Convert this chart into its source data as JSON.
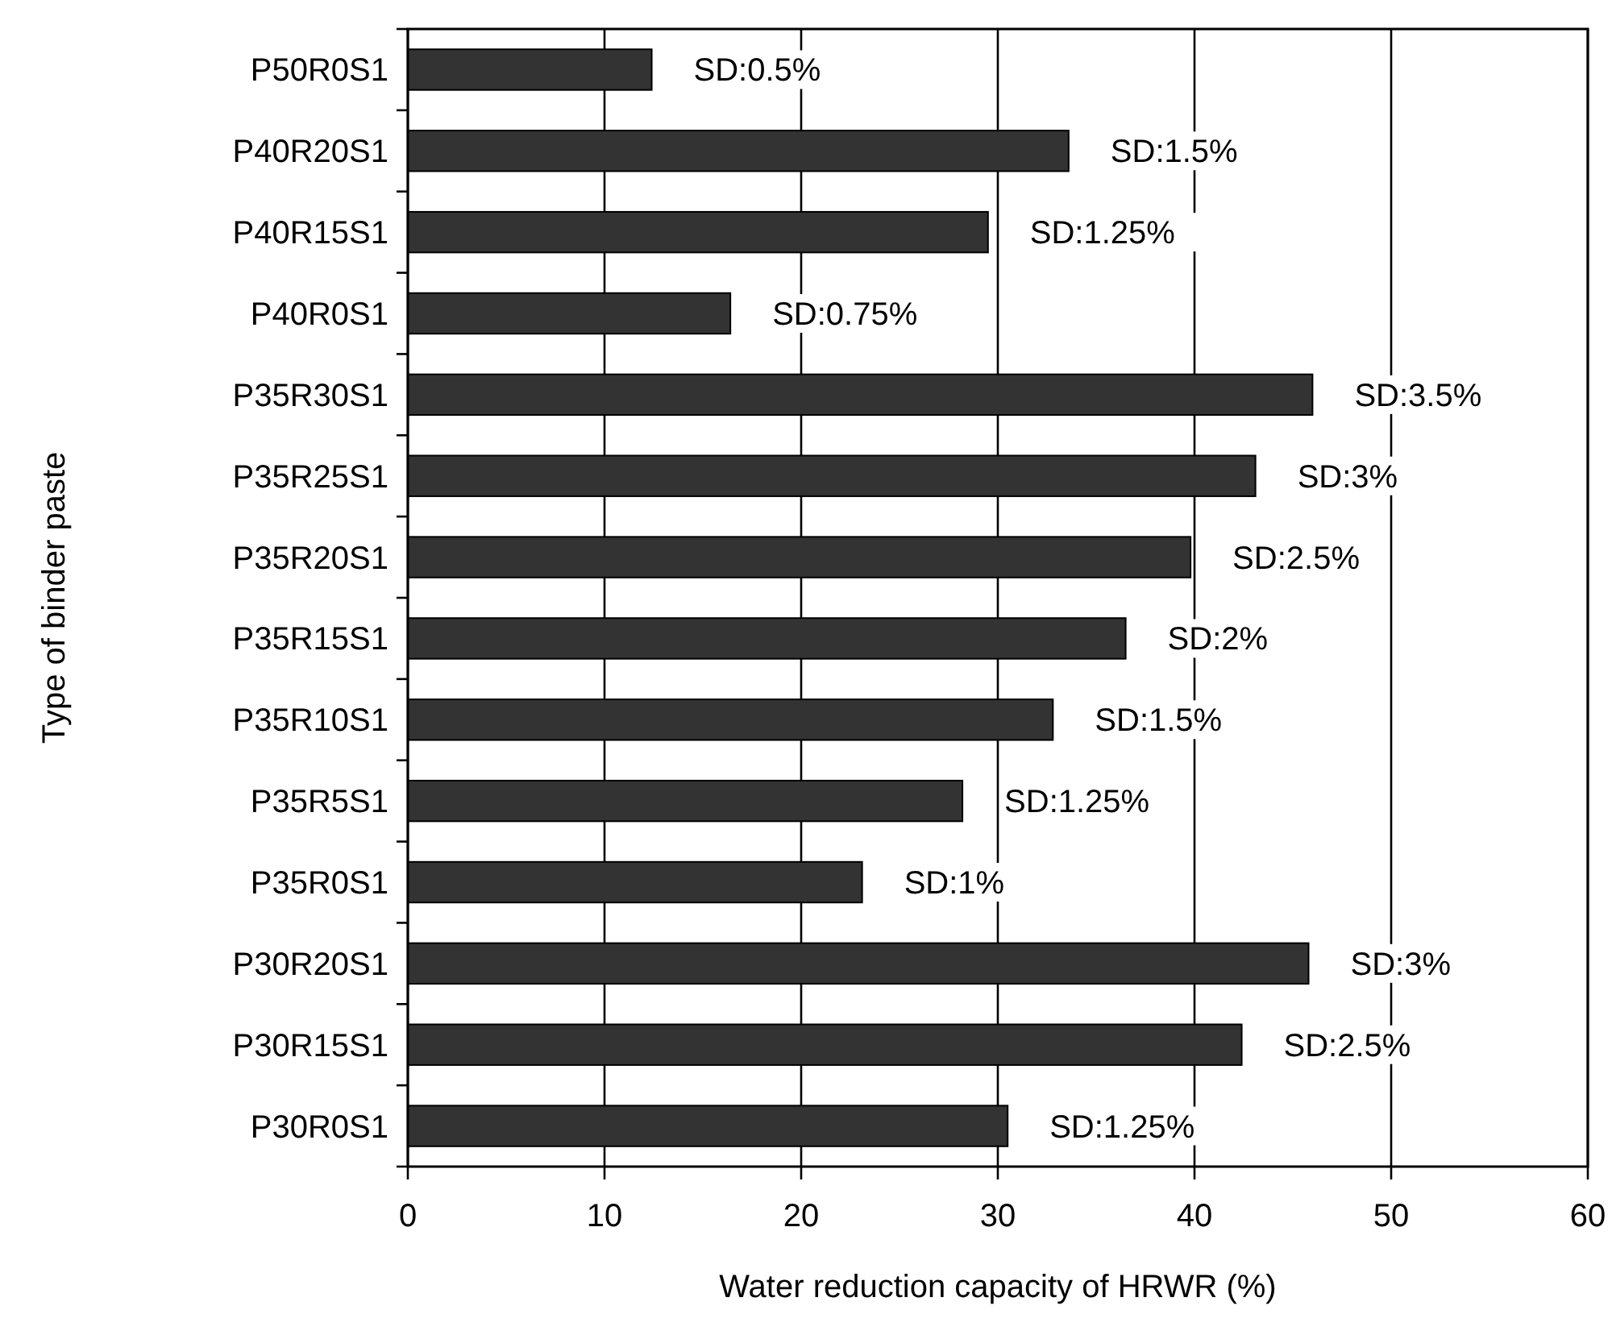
{
  "chart_data": {
    "type": "bar",
    "orientation": "horizontal",
    "xlabel": "Water reduction capacity of HRWR (%)",
    "ylabel": "Type of binder paste",
    "categories": [
      "P50R0S1",
      "P40R20S1",
      "P40R15S1",
      "P40R0S1",
      "P35R30S1",
      "P35R25S1",
      "P35R20S1",
      "P35R15S1",
      "P35R10S1",
      "P35R5S1",
      "P35R0S1",
      "P30R20S1",
      "P30R15S1",
      "P30R0S1"
    ],
    "values": [
      12.4,
      33.6,
      29.5,
      16.4,
      46.0,
      43.1,
      39.8,
      36.5,
      32.8,
      28.2,
      23.1,
      45.8,
      42.4,
      30.5
    ],
    "annotations": [
      {
        "text": "SD:0.5%",
        "x": 12.4,
        "y": "P50R0S1"
      },
      {
        "text": "SD:1.5%",
        "x": 33.6,
        "y": "P40R20S1"
      },
      {
        "text": "SD:1.25%",
        "x": 29.5,
        "y": "P40R15S1"
      },
      {
        "text": "SD:0.75%",
        "x": 16.4,
        "y": "P40R0S1"
      },
      {
        "text": "SD:3.5%",
        "x": 46.0,
        "y": "P35R30S1"
      },
      {
        "text": "SD:3%",
        "x": 43.1,
        "y": "P35R25S1"
      },
      {
        "text": "SD:2.5%",
        "x": 39.8,
        "y": "P35R20S1"
      },
      {
        "text": "SD:2%",
        "x": 36.5,
        "y": "P35R15S1"
      },
      {
        "text": "SD:1.5%",
        "x": 32.8,
        "y": "P35R10S1"
      },
      {
        "text": "SD:1.25%",
        "x": 28.2,
        "y": "P35R5S1"
      },
      {
        "text": "SD:1%",
        "x": 23.1,
        "y": "P35R0S1"
      },
      {
        "text": "SD:3%",
        "x": 45.8,
        "y": "P30R20S1"
      },
      {
        "text": "SD:2.5%",
        "x": 42.4,
        "y": "P30R15S1"
      },
      {
        "text": "SD:1.25%",
        "x": 30.5,
        "y": "P30R0S1"
      }
    ],
    "color": "#333333",
    "xlim": [
      0,
      60
    ],
    "xticks": [
      0,
      10,
      20,
      30,
      40,
      50,
      60
    ],
    "grid": "x"
  }
}
